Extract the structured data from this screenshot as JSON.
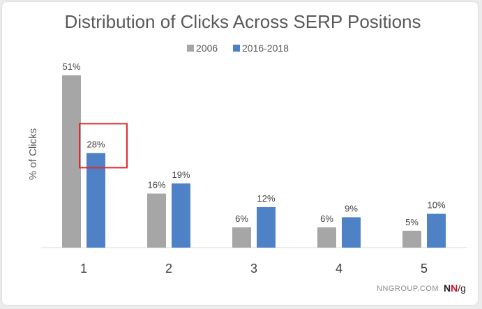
{
  "chart_data": {
    "type": "bar",
    "title": "Distribution of Clicks Across SERP Positions",
    "ylabel": "% of Clicks",
    "xlabel": "",
    "categories": [
      "1",
      "2",
      "3",
      "4",
      "5"
    ],
    "series": [
      {
        "name": "2006",
        "values": [
          51,
          16,
          6,
          6,
          5
        ],
        "labels": [
          "51%",
          "16%",
          "6%",
          "6%",
          "5%"
        ],
        "color": "#a6a6a6"
      },
      {
        "name": "2016-2018",
        "values": [
          28,
          19,
          12,
          9,
          10
        ],
        "labels": [
          "28%",
          "19%",
          "12%",
          "9%",
          "10%"
        ],
        "color": "#4f81c7"
      }
    ],
    "ylim": [
      0,
      51
    ],
    "grid": false,
    "legend": "top-center",
    "highlight": {
      "category": "1",
      "series": "2016-2018",
      "color": "#e8262b"
    }
  },
  "footer": {
    "source": "NNGROUP.COM",
    "logo_n1": "N",
    "logo_n2": "N",
    "logo_g": "/g",
    "logo_red": "#c8102e",
    "logo_dark": "#222222"
  }
}
